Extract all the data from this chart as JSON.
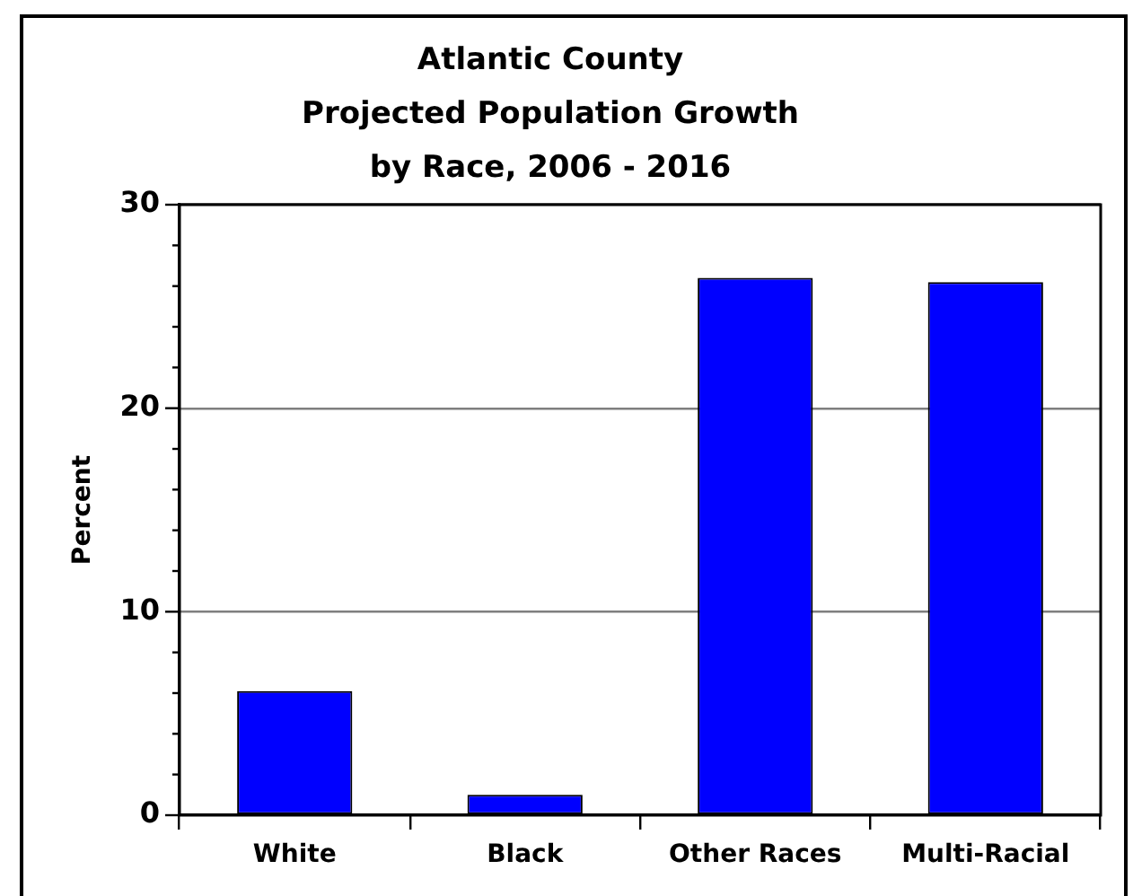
{
  "chart_data": {
    "type": "bar",
    "title": "Atlantic County\nProjected Population Growth\nby Race, 2006 - 2016",
    "ylabel": "Percent",
    "categories": [
      "White",
      "Black",
      "Other Races",
      "Multi-Racial"
    ],
    "values": [
      6.1,
      1.0,
      26.4,
      26.2
    ],
    "color": "#0000ff",
    "ylim": [
      0,
      30
    ],
    "yticks": [
      0,
      {
        "value": 2,
        "label": null
      },
      {
        "value": 4,
        "label": null
      },
      {
        "value": 6,
        "label": null
      },
      {
        "value": 8,
        "label": null
      },
      10,
      {
        "value": 12,
        "label": null
      },
      {
        "value": 14,
        "label": null
      },
      {
        "value": 16,
        "label": null
      },
      {
        "value": 18,
        "label": null
      },
      20,
      {
        "value": 22,
        "label": null
      },
      {
        "value": 24,
        "label": null
      },
      {
        "value": 26,
        "label": null
      },
      {
        "value": 28,
        "label": null
      },
      30
    ],
    "grid": "y"
  }
}
